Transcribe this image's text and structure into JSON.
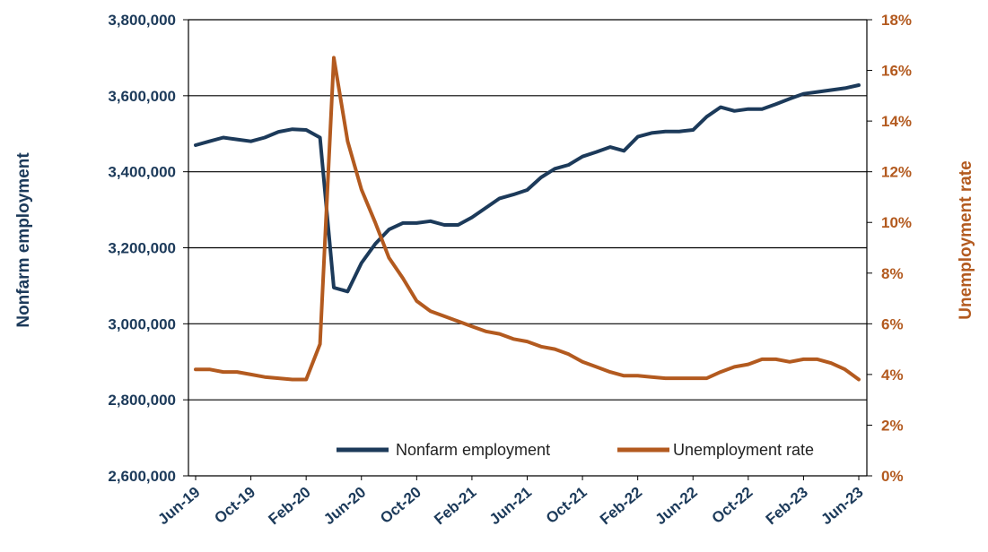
{
  "chart_data": {
    "type": "line",
    "title": "",
    "xlabel": "",
    "ylabel": "Nonfarm employment",
    "ylabel_right": "Unemployment rate",
    "colors": {
      "left_axis": "#1c3a5a",
      "right_axis": "#b35a1f",
      "nonfarm": "#1c3a5a",
      "unemployment": "#b35a1f",
      "grid": "#000000"
    },
    "ylim": [
      2600000,
      3800000
    ],
    "yticks": [
      "2,600,000",
      "2,800,000",
      "3,000,000",
      "3,200,000",
      "3,400,000",
      "3,600,000",
      "3,800,000"
    ],
    "ylim_right": [
      0,
      18
    ],
    "yticks_right": [
      "0%",
      "2%",
      "4%",
      "6%",
      "8%",
      "10%",
      "12%",
      "14%",
      "16%",
      "18%"
    ],
    "xticks": [
      "Jun-19",
      "Oct-19",
      "Feb-20",
      "Jun-20",
      "Oct-20",
      "Feb-21",
      "Jun-21",
      "Oct-21",
      "Feb-22",
      "Jun-22",
      "Oct-22",
      "Feb-23",
      "Jun-23"
    ],
    "gridlines": "horizontal",
    "legend_position": "bottom-right",
    "x": [
      "Jun-19",
      "Jul-19",
      "Aug-19",
      "Sep-19",
      "Oct-19",
      "Nov-19",
      "Dec-19",
      "Jan-20",
      "Feb-20",
      "Mar-20",
      "Apr-20",
      "May-20",
      "Jun-20",
      "Jul-20",
      "Aug-20",
      "Sep-20",
      "Oct-20",
      "Nov-20",
      "Dec-20",
      "Jan-21",
      "Feb-21",
      "Mar-21",
      "Apr-21",
      "May-21",
      "Jun-21",
      "Jul-21",
      "Aug-21",
      "Sep-21",
      "Oct-21",
      "Nov-21",
      "Dec-21",
      "Jan-22",
      "Feb-22",
      "Mar-22",
      "Apr-22",
      "May-22",
      "Jun-22",
      "Jul-22",
      "Aug-22",
      "Sep-22",
      "Oct-22",
      "Nov-22",
      "Dec-22",
      "Jan-23",
      "Feb-23",
      "Mar-23",
      "Apr-23",
      "May-23",
      "Jun-23"
    ],
    "series": [
      {
        "name": "Nonfarm employment",
        "axis": "left",
        "values": [
          3470000,
          3480000,
          3490000,
          3485000,
          3480000,
          3490000,
          3505000,
          3512000,
          3510000,
          3490000,
          3095000,
          3085000,
          3160000,
          3210000,
          3248000,
          3265000,
          3265000,
          3270000,
          3260000,
          3260000,
          3280000,
          3305000,
          3330000,
          3340000,
          3352000,
          3385000,
          3408000,
          3418000,
          3440000,
          3452000,
          3465000,
          3455000,
          3492000,
          3502000,
          3506000,
          3506000,
          3510000,
          3545000,
          3570000,
          3560000,
          3565000,
          3565000,
          3578000,
          3592000,
          3605000,
          3610000,
          3615000,
          3620000,
          3628000
        ]
      },
      {
        "name": "Unemployment rate",
        "axis": "right",
        "values": [
          4.2,
          4.2,
          4.1,
          4.1,
          4.0,
          3.9,
          3.85,
          3.8,
          3.8,
          5.2,
          16.5,
          13.2,
          11.3,
          10.0,
          8.6,
          7.8,
          6.9,
          6.5,
          6.3,
          6.1,
          5.9,
          5.7,
          5.6,
          5.4,
          5.3,
          5.1,
          5.0,
          4.8,
          4.5,
          4.3,
          4.1,
          3.95,
          3.95,
          3.9,
          3.85,
          3.85,
          3.85,
          3.85,
          4.1,
          4.3,
          4.4,
          4.6,
          4.6,
          4.5,
          4.6,
          4.6,
          4.45,
          4.2,
          3.8
        ]
      }
    ]
  }
}
